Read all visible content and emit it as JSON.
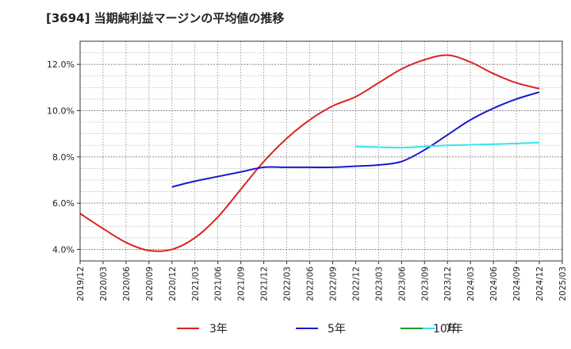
{
  "chart_data": {
    "type": "line",
    "title": "[3694]  当期純利益マージンの平均値の推移",
    "xlabel": "",
    "ylabel": "",
    "ylim": [
      3.5,
      13.0
    ],
    "y_ticks": [
      "4.0%",
      "6.0%",
      "8.0%",
      "10.0%",
      "12.0%"
    ],
    "y_tick_values": [
      4.0,
      6.0,
      8.0,
      10.0,
      12.0
    ],
    "x_ticks": [
      "2019/12",
      "2020/03",
      "2020/06",
      "2020/09",
      "2020/12",
      "2021/03",
      "2021/06",
      "2021/09",
      "2021/12",
      "2022/03",
      "2022/06",
      "2022/09",
      "2022/12",
      "2023/03",
      "2023/06",
      "2023/09",
      "2023/12",
      "2024/03",
      "2024/06",
      "2024/09",
      "2024/12",
      "2025/03"
    ],
    "grid": true,
    "legend_position": "bottom",
    "series": [
      {
        "name": "3年",
        "color": "#dd2222",
        "x": [
          "2019/12",
          "2020/03",
          "2020/06",
          "2020/09",
          "2020/12",
          "2021/03",
          "2021/06",
          "2021/09",
          "2021/12",
          "2022/03",
          "2022/06",
          "2022/09",
          "2022/12",
          "2023/03",
          "2023/06",
          "2023/09",
          "2023/12",
          "2024/03",
          "2024/06",
          "2024/09",
          "2024/12"
        ],
        "values": [
          5.55,
          4.9,
          4.3,
          3.95,
          4.0,
          4.5,
          5.4,
          6.6,
          7.8,
          8.8,
          9.6,
          10.2,
          10.6,
          11.2,
          11.8,
          12.2,
          12.4,
          12.1,
          11.6,
          11.2,
          10.95
        ]
      },
      {
        "name": "5年",
        "color": "#1a1acc",
        "x": [
          "2020/12",
          "2021/03",
          "2021/06",
          "2021/09",
          "2021/12",
          "2022/03",
          "2022/06",
          "2022/09",
          "2022/12",
          "2023/03",
          "2023/06",
          "2023/09",
          "2023/12",
          "2024/03",
          "2024/06",
          "2024/09",
          "2024/12"
        ],
        "values": [
          6.7,
          6.95,
          7.15,
          7.35,
          7.55,
          7.55,
          7.55,
          7.55,
          7.6,
          7.65,
          7.8,
          8.3,
          8.95,
          9.6,
          10.1,
          10.5,
          10.8
        ]
      },
      {
        "name": "7年",
        "color": "#33e5ee",
        "x": [
          "2022/12",
          "2023/03",
          "2023/06",
          "2023/09",
          "2023/12",
          "2024/03",
          "2024/06",
          "2024/09",
          "2024/12"
        ],
        "values": [
          8.45,
          8.42,
          8.4,
          8.45,
          8.5,
          8.52,
          8.55,
          8.58,
          8.62
        ]
      },
      {
        "name": "10年",
        "color": "#229922",
        "x": [],
        "values": []
      }
    ]
  }
}
